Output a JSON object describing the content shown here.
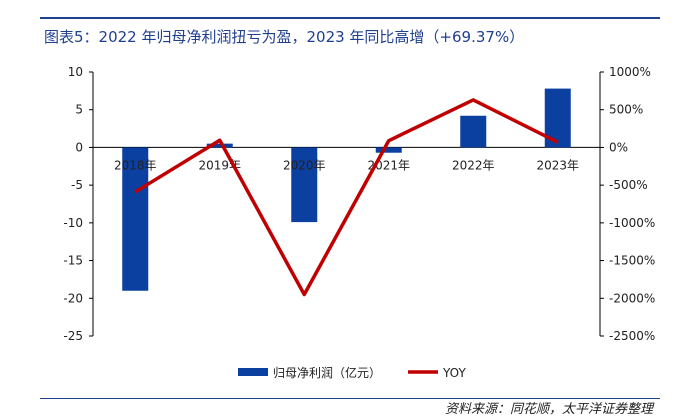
{
  "title": "图表5：2022 年归母净利润扭亏为盈，2023 年同比高增（+69.37%）",
  "source": "资料来源：同花顺，太平洋证券整理",
  "chart_data": {
    "type": "bar",
    "categories": [
      "2018年",
      "2019年",
      "2020年",
      "2021年",
      "2022年",
      "2023年"
    ],
    "series": [
      {
        "name": "归母净利润（亿元）",
        "type": "bar",
        "axis": "left",
        "color": "#0b3fa0",
        "values": [
          -19.0,
          0.5,
          -9.9,
          -0.7,
          4.2,
          7.8
        ]
      },
      {
        "name": "YOY",
        "type": "line",
        "axis": "right",
        "color": "#c00000",
        "values": [
          -590,
          95,
          -1950,
          90,
          630,
          69.37
        ]
      }
    ],
    "y_left": {
      "min": -25,
      "max": 10,
      "ticks": [
        -25,
        -20,
        -15,
        -10,
        -5,
        0,
        5,
        10
      ]
    },
    "y_right": {
      "min": -2500,
      "max": 1000,
      "ticks": [
        -2500,
        -2000,
        -1500,
        -1000,
        -500,
        0,
        500,
        1000
      ],
      "tick_labels": [
        "-2500%",
        "-2000%",
        "-1500%",
        "-1000%",
        "-500%",
        "0%",
        "500%",
        "1000%"
      ]
    },
    "legend": "bottom-center",
    "grid": false
  }
}
